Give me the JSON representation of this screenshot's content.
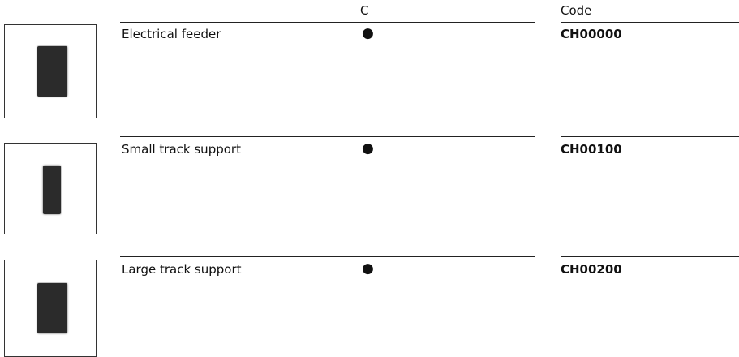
{
  "table": {
    "columns": {
      "c": "C",
      "code": "Code"
    },
    "rows": [
      {
        "name": "Electrical feeder",
        "c": "●",
        "code": "CH00000"
      },
      {
        "name": "Small track support",
        "c": "●",
        "code": "CH00100"
      },
      {
        "name": "Large track support",
        "c": "●",
        "code": "CH00200"
      }
    ]
  }
}
